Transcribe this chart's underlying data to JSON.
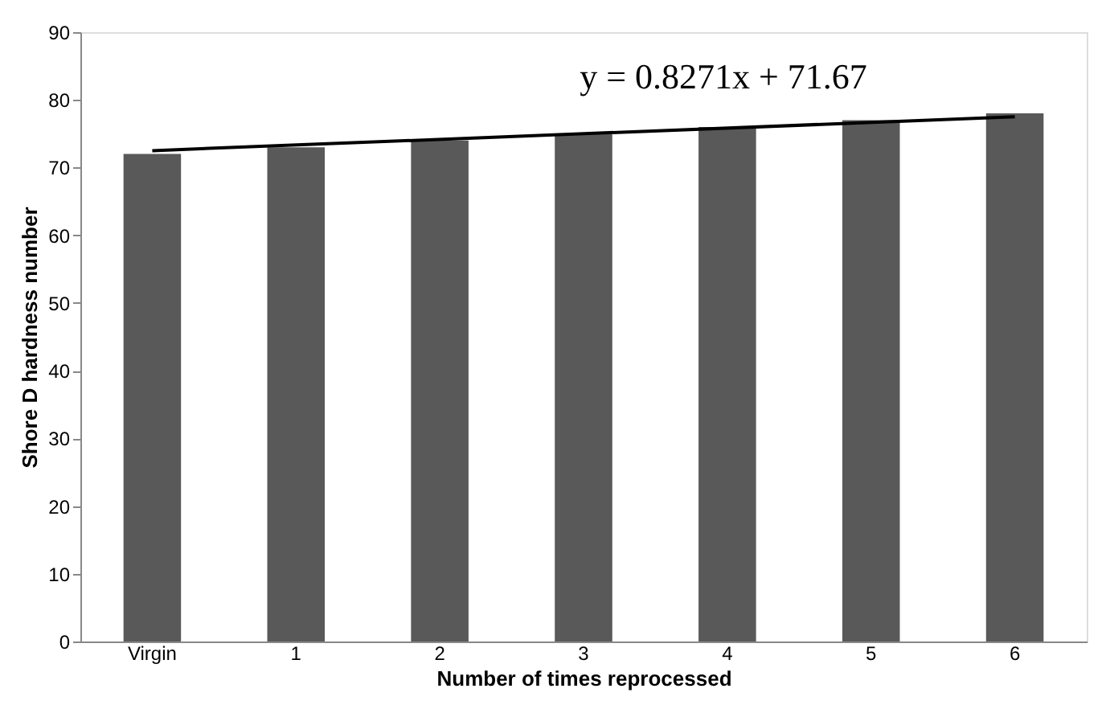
{
  "chart_data": {
    "type": "bar",
    "xlabel": "Number of times reprocessed",
    "ylabel": "Shore D hardness number",
    "categories": [
      "Virgin",
      "1",
      "2",
      "3",
      "4",
      "5",
      "6"
    ],
    "series": [
      {
        "color": "#595959",
        "values": [
          72,
          73,
          74,
          75,
          76,
          77,
          78
        ]
      },
      {
        "type": "line",
        "color": "#000000",
        "x": [
          "Virgin",
          "6"
        ],
        "values": [
          72.5,
          77.5
        ]
      }
    ],
    "annotations": [
      "y = 0.8271x + 71.67"
    ],
    "ylim": [
      0,
      90
    ],
    "yticks": [
      0,
      10,
      20,
      30,
      40,
      50,
      60,
      70,
      80,
      90
    ]
  }
}
